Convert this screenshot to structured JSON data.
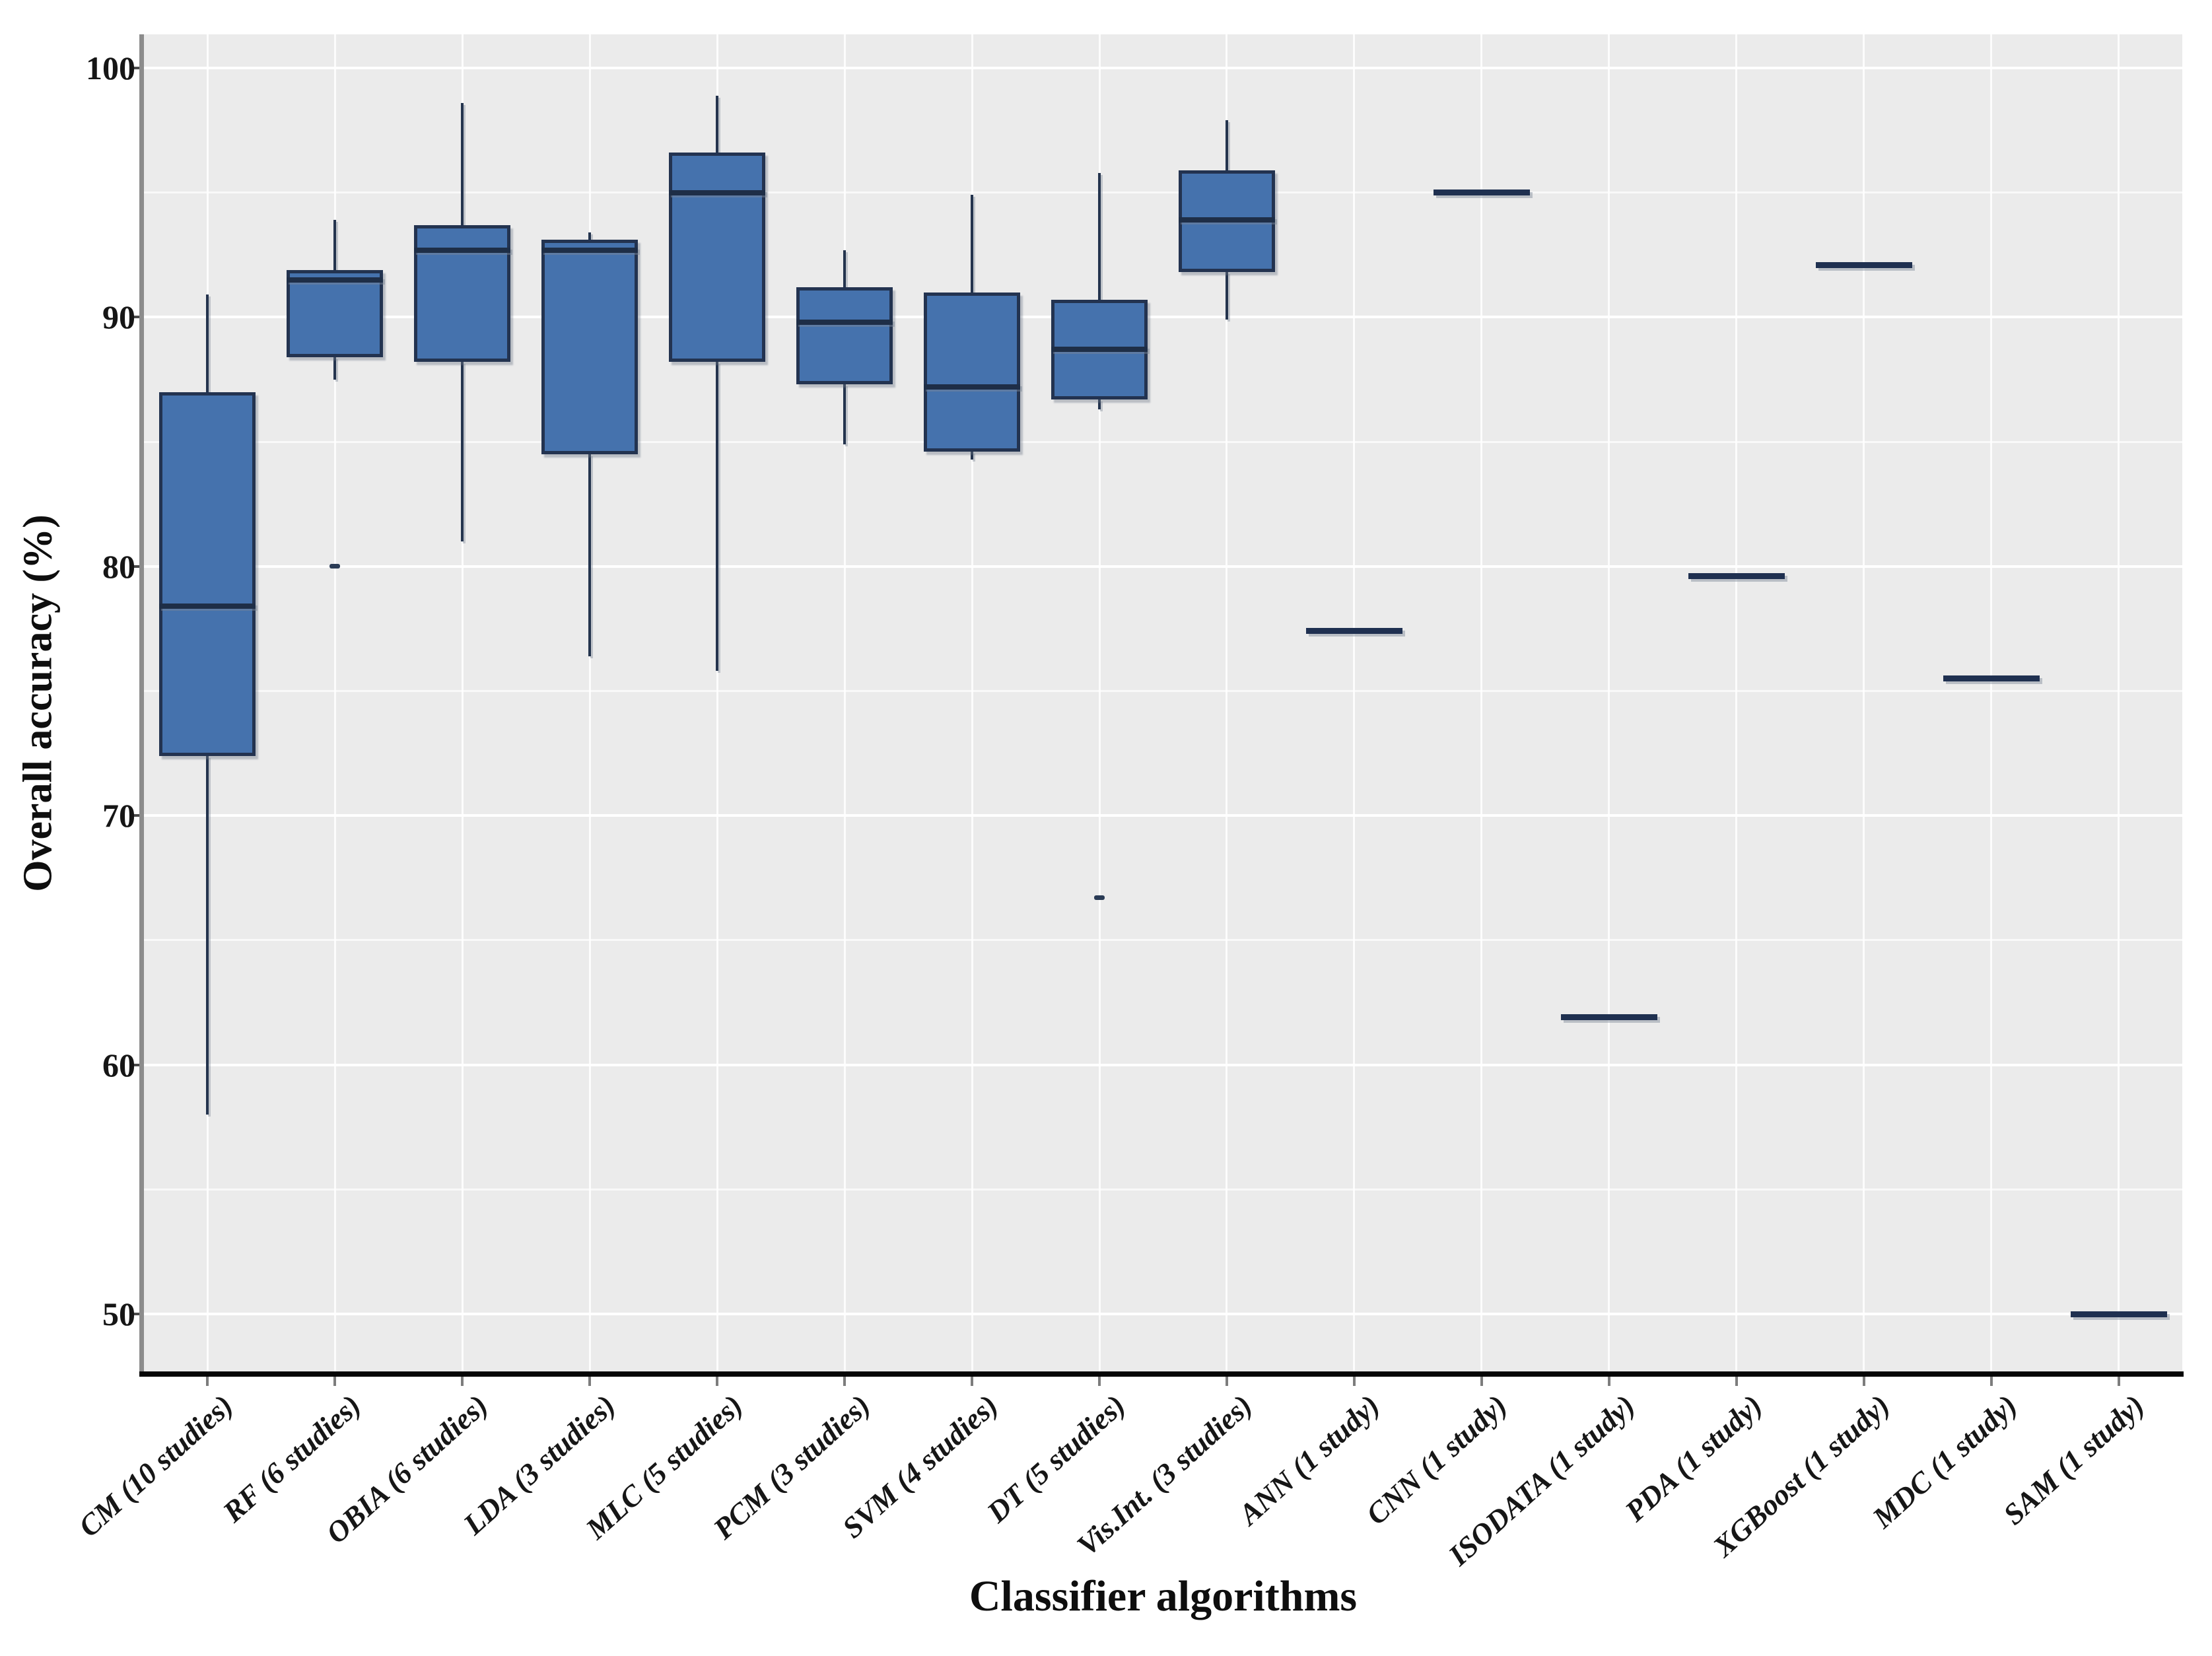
{
  "chart_data": {
    "type": "boxplot",
    "title": "",
    "xlabel": "Classifier algorithms",
    "ylabel": "Overall accuracy (%)",
    "ylim": [
      47.7,
      101.4
    ],
    "grid": "on",
    "legend": "none",
    "y_major_ticks": [
      100,
      90,
      80,
      70,
      60,
      50
    ],
    "y_major_tick_labels": [
      "100",
      "90",
      "80",
      "70",
      "60",
      "50"
    ],
    "y_minor_gridlines": [
      95,
      85,
      75,
      65,
      55
    ],
    "categories": [
      "CM (10 studies)",
      "RF (6 studies)",
      "OBIA (6 studies)",
      "LDA (3 studies)",
      "MLC (5 studies)",
      "PCM (3 studies)",
      "SVM (4 studies)",
      "DT (5 studies)",
      "Vis.Int. (3 studies)",
      "ANN (1 study)",
      "CNN (1 study)",
      "ISODATA (1 study)",
      "PDA (1 study)",
      "XGBoost (1 study)",
      "MDC (1 study)",
      "SAM (1 study)"
    ],
    "series": [
      {
        "name": "CM (10 studies)",
        "min": 58.0,
        "q1": 72.4,
        "median": 78.4,
        "q3": 87.0,
        "max": 90.9,
        "outliers": []
      },
      {
        "name": "RF (6 studies)",
        "min": 87.5,
        "q1": 88.4,
        "median": 91.5,
        "q3": 91.9,
        "max": 93.9,
        "outliers": [
          80.0
        ]
      },
      {
        "name": "OBIA (6 studies)",
        "min": 81.0,
        "q1": 88.2,
        "median": 92.7,
        "q3": 93.7,
        "max": 98.6,
        "outliers": []
      },
      {
        "name": "LDA (3 studies)",
        "min": 76.4,
        "q1": 84.5,
        "median": 92.7,
        "q3": 93.1,
        "max": 93.4,
        "outliers": []
      },
      {
        "name": "MLC (5 studies)",
        "min": 75.8,
        "q1": 88.2,
        "median": 95.0,
        "q3": 96.6,
        "max": 98.9,
        "outliers": []
      },
      {
        "name": "PCM (3 studies)",
        "min": 84.9,
        "q1": 87.3,
        "median": 89.8,
        "q3": 91.2,
        "max": 92.7,
        "outliers": []
      },
      {
        "name": "SVM (4 studies)",
        "min": 84.3,
        "q1": 84.6,
        "median": 87.2,
        "q3": 91.0,
        "max": 94.9,
        "outliers": []
      },
      {
        "name": "DT (5 studies)",
        "min": 86.3,
        "q1": 86.7,
        "median": 88.7,
        "q3": 90.7,
        "max": 95.8,
        "outliers": [
          66.7
        ]
      },
      {
        "name": "Vis.Int. (3 studies)",
        "min": 89.9,
        "q1": 91.8,
        "median": 93.9,
        "q3": 95.9,
        "max": 97.9,
        "outliers": []
      },
      {
        "name": "ANN (1 study)",
        "min": 77.4,
        "q1": 77.4,
        "median": 77.4,
        "q3": 77.4,
        "max": 77.4,
        "outliers": []
      },
      {
        "name": "CNN (1 study)",
        "min": 95.0,
        "q1": 95.0,
        "median": 95.0,
        "q3": 95.0,
        "max": 95.0,
        "outliers": []
      },
      {
        "name": "ISODATA (1 study)",
        "min": 61.9,
        "q1": 61.9,
        "median": 61.9,
        "q3": 61.9,
        "max": 61.9,
        "outliers": []
      },
      {
        "name": "PDA (1 study)",
        "min": 79.6,
        "q1": 79.6,
        "median": 79.6,
        "q3": 79.6,
        "max": 79.6,
        "outliers": []
      },
      {
        "name": "XGBoost (1 study)",
        "min": 92.1,
        "q1": 92.1,
        "median": 92.1,
        "q3": 92.1,
        "max": 92.1,
        "outliers": []
      },
      {
        "name": "MDC (1 study)",
        "min": 75.5,
        "q1": 75.5,
        "median": 75.5,
        "q3": 75.5,
        "max": 75.5,
        "outliers": []
      },
      {
        "name": "SAM (1 study)",
        "min": 50.0,
        "q1": 50.0,
        "median": 50.0,
        "q3": 50.0,
        "max": 50.0,
        "outliers": []
      }
    ],
    "colors": {
      "box_fill": "#4572AD",
      "box_border": "#233350",
      "median_line": "#1E2E47",
      "panel_background": "#EBEBEB",
      "gridline": "#FFFFFF",
      "left_spine": "#8C8C8C",
      "bottom_spine": "#060606",
      "text": "#161616"
    }
  }
}
